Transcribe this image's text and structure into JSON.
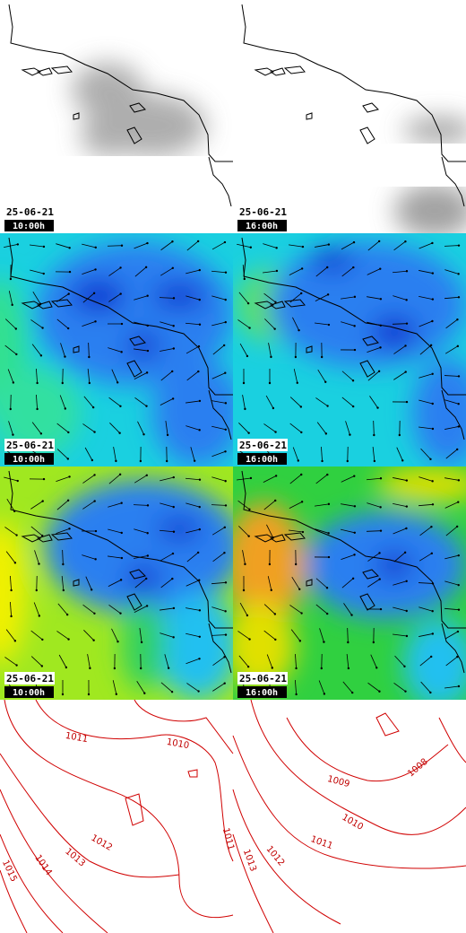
{
  "rows": [
    {
      "panels": [
        {
          "date": "25-06-21",
          "time": "10:00h"
        },
        {
          "date": "25-06-21",
          "time": "16:00h"
        }
      ]
    },
    {
      "panels": [
        {
          "date": "25-06-21",
          "time": "10:00h"
        },
        {
          "date": "25-06-21",
          "time": "16:00h"
        }
      ]
    },
    {
      "panels": [
        {
          "date": "25-06-21",
          "time": "10:00h"
        },
        {
          "date": "25-06-21",
          "time": "16:00h"
        }
      ]
    }
  ],
  "isobars": [
    {
      "labels": [
        "1011",
        "1010",
        "1011",
        "1012",
        "1013",
        "1014",
        "1015"
      ]
    },
    {
      "labels": [
        "1009",
        "1010",
        "1011",
        "1012",
        "1013",
        "1008"
      ]
    }
  ]
}
